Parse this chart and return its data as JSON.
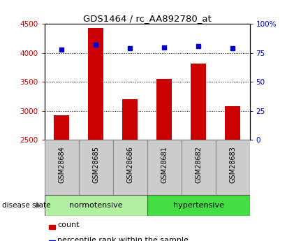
{
  "title": "GDS1464 / rc_AA892780_at",
  "samples": [
    "GSM28684",
    "GSM28685",
    "GSM28686",
    "GSM28681",
    "GSM28682",
    "GSM28683"
  ],
  "counts": [
    2920,
    4430,
    3200,
    3550,
    3820,
    3080
  ],
  "percentile_ranks": [
    78,
    82,
    79,
    80,
    81,
    79
  ],
  "norm_label": "normotensive",
  "hyper_label": "hypertensive",
  "norm_color": "#b0f0a0",
  "hyper_color": "#44dd44",
  "bar_color": "#cc0000",
  "dot_color": "#0000cc",
  "ylim_left": [
    2500,
    4500
  ],
  "ylim_right": [
    0,
    100
  ],
  "yticks_left": [
    2500,
    3000,
    3500,
    4000,
    4500
  ],
  "yticks_right": [
    0,
    25,
    50,
    75,
    100
  ],
  "ytick_labels_right": [
    "0",
    "25",
    "50",
    "75",
    "100%"
  ],
  "grid_values": [
    3000,
    3500,
    4000
  ],
  "left_tick_color": "#cc0000",
  "right_tick_color": "#0000cc",
  "group_label": "disease state",
  "bar_bottom": 2500,
  "legend_count": "count",
  "legend_pct": "percentile rank within the sample",
  "sample_box_color": "#cccccc",
  "title_fontsize": 9.5,
  "tick_fontsize": 7.5,
  "label_fontsize": 7.5,
  "bar_width": 0.45
}
